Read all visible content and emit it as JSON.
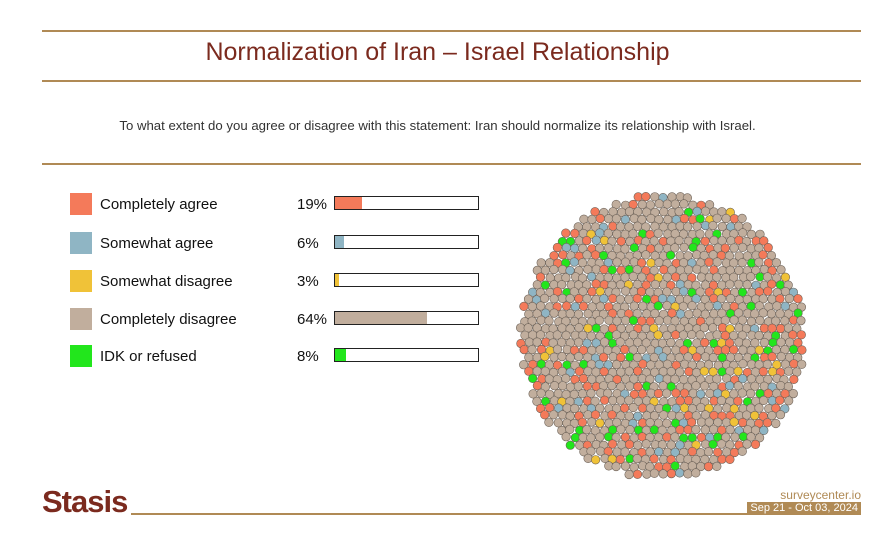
{
  "header": {
    "title": "Normalization of Iran – Israel Relationship",
    "question": "To what extent do you agree or disagree with this statement: Iran should normalize its relationship with Israel."
  },
  "chart_data": {
    "type": "bar",
    "categories": [
      "Completely agree",
      "Somewhat agree",
      "Somewhat disagree",
      "Completely disagree",
      "IDK or refused"
    ],
    "values": [
      19,
      6,
      3,
      64,
      8
    ],
    "value_labels": [
      "19%",
      "6%",
      "3%",
      "64%",
      "8%"
    ],
    "colors": [
      "#f47a5a",
      "#8fb5c4",
      "#f0c238",
      "#c1ae9d",
      "#22e61c"
    ],
    "ylim": [
      0,
      100
    ],
    "legend_placement": "left",
    "secondary_visual": "bubble cluster with circles colored by response share"
  },
  "footer": {
    "logo": "Stasis",
    "site": "surveycenter.io",
    "dates": "Sep 21 - Oct 03, 2024"
  }
}
